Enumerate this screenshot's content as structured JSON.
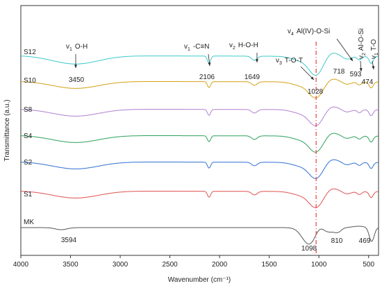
{
  "chart_data": {
    "type": "line",
    "title": "",
    "xlabel": "Wavenumber (cm⁻¹)",
    "ylabel": "Transmittance (a.u.)",
    "xlim": [
      4000,
      400
    ],
    "x_reversed": true,
    "xticks": [
      4000,
      3500,
      3000,
      2500,
      2000,
      1500,
      1000,
      500
    ],
    "y_ticks_shown": false,
    "grid": false,
    "legend": "none",
    "series": [
      {
        "name": "S12",
        "color": "#3cc8c8",
        "offset": 80,
        "amp": 1.0,
        "profile": "geo"
      },
      {
        "name": "S10",
        "color": "#d4a017",
        "offset": 117,
        "amp": 0.85,
        "profile": "geo"
      },
      {
        "name": "S8",
        "color": "#b07fd0",
        "offset": 157,
        "amp": 0.85,
        "profile": "geo"
      },
      {
        "name": "S4",
        "color": "#2ca05a",
        "offset": 195,
        "amp": 0.85,
        "profile": "geo"
      },
      {
        "name": "S2",
        "color": "#2f6fd0",
        "offset": 233,
        "amp": 0.85,
        "profile": "geo"
      },
      {
        "name": "S1",
        "color": "#e05050",
        "offset": 275,
        "amp": 0.85,
        "profile": "geo"
      },
      {
        "name": "MK",
        "color": "#555555",
        "offset": 328,
        "amp": 1.0,
        "profile": "mk"
      }
    ],
    "annotations": {
      "peak_labels": [
        {
          "text": "3450",
          "x": 3450
        },
        {
          "text": "2106",
          "x": 2106
        },
        {
          "text": "1649",
          "x": 1649
        },
        {
          "text": "1028",
          "x": 1028
        },
        {
          "text": "718",
          "x": 718
        },
        {
          "text": "593",
          "x": 593
        },
        {
          "text": "474",
          "x": 474
        },
        {
          "text": "3594",
          "x": 3594
        },
        {
          "text": "1098",
          "x": 1098
        },
        {
          "text": "810",
          "x": 810
        },
        {
          "text": "469",
          "x": 469
        }
      ],
      "band_labels": [
        {
          "sym": "v",
          "sub": "1",
          "text": "O-H",
          "x": 3450
        },
        {
          "sym": "v",
          "sub": "1",
          "text": "-C≡N",
          "x": 2106
        },
        {
          "sym": "v",
          "sub": "2",
          "text": "H-O-H",
          "x": 1649
        },
        {
          "sym": "v",
          "sub": "3",
          "text": "T-O-T",
          "x": 1028
        },
        {
          "sym": "v",
          "sub": "4",
          "text": "Al(IV)-O-Si",
          "x": 718
        },
        {
          "sym": "v",
          "sub": "2",
          "text": "Al-O-Si",
          "x": 593
        },
        {
          "sym": "v",
          "sub": "1",
          "text": "T-O",
          "x": 474
        }
      ],
      "reference_line": {
        "x": 1028,
        "style": "dash-dot",
        "color": "#e8403a"
      }
    }
  }
}
